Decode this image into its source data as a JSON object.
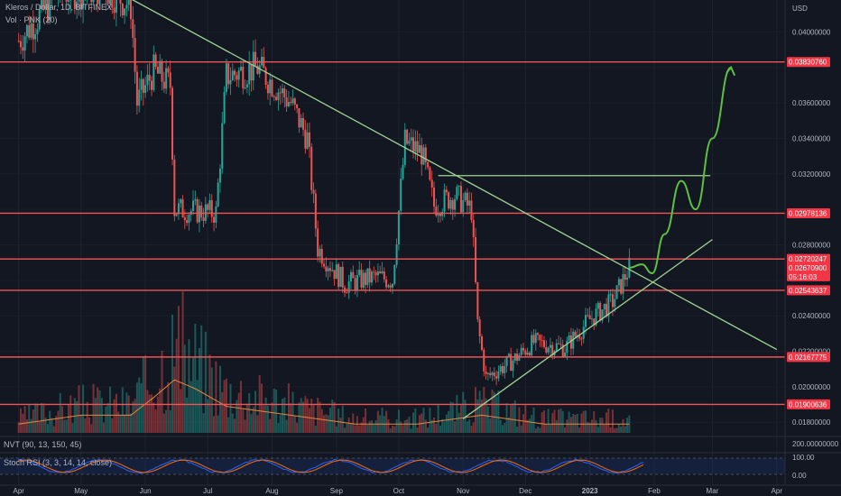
{
  "header": {
    "symbol_line": "Kleros / Dollar, 1D, BITFINEX",
    "volume_line": "Vol · PNK (20)"
  },
  "price_axis": {
    "currency": "USD",
    "ticks": [
      "0.04000000",
      "0.03600000",
      "0.03400000",
      "0.03200000",
      "0.02800000",
      "0.02400000",
      "0.02200000",
      "0.02000000",
      "0.01800000"
    ]
  },
  "price_labels": [
    {
      "text": "0.03830760",
      "kind": "level"
    },
    {
      "text": "0.02978136",
      "kind": "level"
    },
    {
      "text": "0.02720247",
      "kind": "level"
    },
    {
      "text": "0.02670900",
      "kind": "current"
    },
    {
      "text": "05:16:03",
      "kind": "countdown"
    },
    {
      "text": "0.02543637",
      "kind": "level"
    },
    {
      "text": "0.02167775",
      "kind": "level"
    },
    {
      "text": "0.01900636",
      "kind": "level"
    }
  ],
  "indicators": {
    "nvt_label": "NVT (90, 13, 150, 45)",
    "nvt_value": "200.00000000",
    "stoch_label": "Stoch RSI (3, 3, 14, 14, close)",
    "stoch_ticks": [
      "100.00",
      "0.00"
    ]
  },
  "time_axis": {
    "labels": [
      "Apr",
      "May",
      "Jun",
      "Jul",
      "Aug",
      "Sep",
      "Oct",
      "Nov",
      "Dec",
      "2023",
      "Feb",
      "Mar",
      "Apr"
    ]
  },
  "colors": {
    "background": "#131722",
    "up": "#26a69a",
    "down": "#ef5350",
    "level_line": "#f05454",
    "trendline": "#9fd694",
    "projection": "#5dc13f",
    "volume_ma": "#e8863c",
    "stoch_k": "#2962ff",
    "stoch_d": "#ff6d00"
  },
  "chart_data": {
    "type": "candlestick",
    "title": "Kleros / Dollar, 1D, BITFINEX",
    "ylabel": "USD",
    "ylim": [
      0.0173,
      0.0418
    ],
    "horizontal_levels": [
      0.0383076,
      0.02978136,
      0.02720247,
      0.02543637,
      0.02167775,
      0.01900636
    ],
    "current_price": 0.026709,
    "price_path": [
      {
        "date": "2022-04-01",
        "price": 0.0395
      },
      {
        "date": "2022-04-20",
        "price": 0.0422
      },
      {
        "date": "2022-05-12",
        "price": 0.0425
      },
      {
        "date": "2022-05-25",
        "price": 0.0415
      },
      {
        "date": "2022-05-28",
        "price": 0.036
      },
      {
        "date": "2022-06-05",
        "price": 0.0378
      },
      {
        "date": "2022-06-13",
        "price": 0.037
      },
      {
        "date": "2022-06-15",
        "price": 0.03
      },
      {
        "date": "2022-07-05",
        "price": 0.0298
      },
      {
        "date": "2022-07-10",
        "price": 0.0375
      },
      {
        "date": "2022-07-25",
        "price": 0.038
      },
      {
        "date": "2022-08-10",
        "price": 0.036
      },
      {
        "date": "2022-08-18",
        "price": 0.034
      },
      {
        "date": "2022-08-23",
        "price": 0.0278
      },
      {
        "date": "2022-09-05",
        "price": 0.0258
      },
      {
        "date": "2022-09-20",
        "price": 0.0262
      },
      {
        "date": "2022-09-28",
        "price": 0.026
      },
      {
        "date": "2022-10-04",
        "price": 0.0338
      },
      {
        "date": "2022-10-12",
        "price": 0.0332
      },
      {
        "date": "2022-10-18",
        "price": 0.0302
      },
      {
        "date": "2022-10-28",
        "price": 0.0308
      },
      {
        "date": "2022-11-05",
        "price": 0.03
      },
      {
        "date": "2022-11-08",
        "price": 0.0235
      },
      {
        "date": "2022-11-12",
        "price": 0.0205
      },
      {
        "date": "2022-11-25",
        "price": 0.0215
      },
      {
        "date": "2022-12-05",
        "price": 0.0225
      },
      {
        "date": "2022-12-20",
        "price": 0.0222
      },
      {
        "date": "2023-01-01",
        "price": 0.0238
      },
      {
        "date": "2023-01-12",
        "price": 0.0248
      },
      {
        "date": "2023-01-20",
        "price": 0.02671
      }
    ],
    "trendlines": [
      {
        "from": {
          "date": "2022-05-15",
          "price": 0.0425
        },
        "to": {
          "date": "2023-04-01",
          "price": 0.0221
        }
      },
      {
        "from": {
          "date": "2022-11-01",
          "price": 0.0182
        },
        "to": {
          "date": "2023-03-01",
          "price": 0.0283
        }
      },
      {
        "from": {
          "date": "2022-10-20",
          "price": 0.0319
        },
        "to": {
          "date": "2023-02-28",
          "price": 0.0319
        }
      }
    ],
    "projection_path": [
      {
        "date": "2023-01-20",
        "price": 0.02671
      },
      {
        "date": "2023-01-26",
        "price": 0.0269
      },
      {
        "date": "2023-01-31",
        "price": 0.0264
      },
      {
        "date": "2023-02-06",
        "price": 0.0286
      },
      {
        "date": "2023-02-14",
        "price": 0.0316
      },
      {
        "date": "2023-02-21",
        "price": 0.03
      },
      {
        "date": "2023-03-01",
        "price": 0.034
      },
      {
        "date": "2023-03-10",
        "price": 0.038
      }
    ],
    "volume": [
      {
        "date": "2022-04-01",
        "v": 1
      },
      {
        "date": "2022-05-01",
        "v": 2
      },
      {
        "date": "2022-05-25",
        "v": 2
      },
      {
        "date": "2022-06-05",
        "v": 4
      },
      {
        "date": "2022-06-15",
        "v": 6
      },
      {
        "date": "2022-06-25",
        "v": 5
      },
      {
        "date": "2022-07-10",
        "v": 3
      },
      {
        "date": "2022-08-10",
        "v": 2
      },
      {
        "date": "2022-09-10",
        "v": 1
      },
      {
        "date": "2022-10-10",
        "v": 1
      },
      {
        "date": "2022-11-10",
        "v": 2
      },
      {
        "date": "2022-12-10",
        "v": 1
      },
      {
        "date": "2023-01-10",
        "v": 1
      }
    ]
  }
}
